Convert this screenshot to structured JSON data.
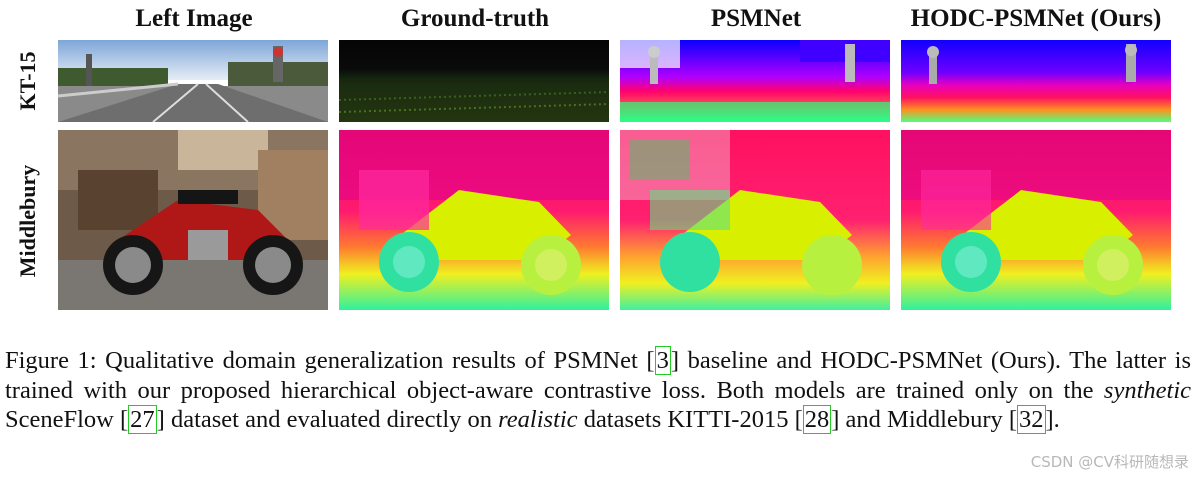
{
  "headers": [
    "Left Image",
    "Ground-truth",
    "PSMNet",
    "HODC-PSMNet (Ours)"
  ],
  "rows": [
    "KT-15",
    "Middlebury"
  ],
  "caption": {
    "prefix": "Figure 1: Qualitative domain generalization results of PSMNet [",
    "ref1": "3",
    "t2": "] baseline and HODC-PSMNet (Ours). The latter is trained with our proposed hierarchical object-aware contrastive loss. Both models are trained only on the ",
    "synthetic": "synthetic",
    "t3": " SceneFlow [",
    "ref2": "27",
    "t4": "] dataset and evaluated directly on ",
    "realistic": "realistic",
    "t5": " datasets KITTI-2015 [",
    "ref3": "28",
    "t6": "] and Middlebury [",
    "ref4": "32",
    "t7": "]."
  },
  "watermark": "CSDN @CV科研随想录",
  "colors": {
    "ref_border": "#22cc22",
    "disparity_far": "#ff1060",
    "disparity_near": "#e8ff20"
  }
}
